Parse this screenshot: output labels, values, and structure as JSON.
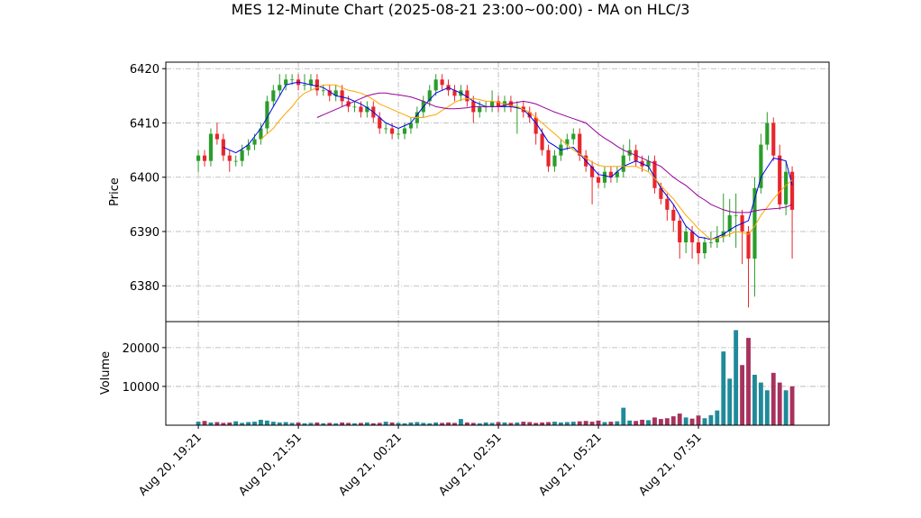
{
  "chart_data": {
    "type": "candlestick",
    "title": "MES 12-Minute Chart (2025-08-21 23:00~00:00) - MA on HLC/3",
    "ylabel": "Price",
    "up_color": "#2a9d2a",
    "down_color": "#e8262b",
    "grid": true,
    "xlim": [
      -5.2,
      100.9
    ],
    "xticks": [
      {
        "value": 0,
        "label": "Aug 20, 19:21"
      },
      {
        "value": 16,
        "label": "Aug 20, 21:51"
      },
      {
        "value": 32,
        "label": "Aug 21, 00:21"
      },
      {
        "value": 48,
        "label": "Aug 21, 02:51"
      },
      {
        "value": 64,
        "label": "Aug 21, 05:21"
      },
      {
        "value": 80,
        "label": "Aug 21, 07:51"
      }
    ],
    "ylim": [
      6373.4,
      6421.2
    ],
    "yticks": [
      6380,
      6390,
      6400,
      6410,
      6420
    ],
    "open": [
      6403,
      6404,
      6403,
      6408,
      6407,
      6404,
      6403,
      6403,
      6405,
      6406,
      6407,
      6409,
      6414,
      6416,
      6417,
      6418,
      6418,
      6417,
      6417,
      6418,
      6416,
      6416,
      6415,
      6416,
      6414,
      6413,
      6413,
      6412,
      6413,
      6411,
      6409,
      6409,
      6408,
      6408,
      6409,
      6410,
      6412,
      6414,
      6416,
      6418,
      6417,
      6416,
      6415,
      6416,
      6414,
      6412,
      6413,
      6413,
      6414,
      6413,
      6414,
      6413,
      6413,
      6412,
      6411,
      6408,
      6405,
      6402,
      6404,
      6406,
      6407,
      6408,
      6404,
      6402,
      6400,
      6399,
      6401,
      6400,
      6401,
      6404,
      6405,
      6403,
      6402,
      6403,
      6398,
      6396,
      6394,
      6392,
      6388,
      6390,
      6388,
      6386,
      6388,
      6388,
      6389,
      6390,
      6393,
      6393,
      6390,
      6385,
      6398,
      6406,
      6410,
      6404,
      6395,
      6401
    ],
    "high": [
      6405,
      6405,
      6409,
      6410,
      6408,
      6405,
      6404,
      6406,
      6407,
      6408,
      6410,
      6415,
      6417,
      6419,
      6419,
      6419,
      6419,
      6419,
      6419,
      6419,
      6417,
      6417,
      6417,
      6417,
      6415,
      6414,
      6414,
      6414,
      6414,
      6412,
      6410,
      6410,
      6409,
      6410,
      6411,
      6413,
      6415,
      6417,
      6419,
      6419,
      6418,
      6417,
      6417,
      6417,
      6415,
      6414,
      6414,
      6416,
      6415,
      6415,
      6415,
      6414,
      6414,
      6413,
      6412,
      6409,
      6406,
      6405,
      6407,
      6408,
      6409,
      6409,
      6405,
      6403,
      6401,
      6402,
      6402,
      6402,
      6406,
      6407,
      6406,
      6404,
      6404,
      6404,
      6399,
      6397,
      6395,
      6393,
      6391,
      6391,
      6389,
      6389,
      6390,
      6391,
      6397,
      6396,
      6397,
      6394,
      6391,
      6400,
      6408,
      6412,
      6411,
      6406,
      6403,
      6402
    ],
    "low": [
      6401,
      6402,
      6402,
      6406,
      6403,
      6401,
      6402,
      6402,
      6404,
      6405,
      6406,
      6408,
      6413,
      6415,
      6416,
      6417,
      6416,
      6416,
      6416,
      6415,
      6415,
      6414,
      6414,
      6413,
      6412,
      6412,
      6411,
      6411,
      6410,
      6408,
      6408,
      6407,
      6407,
      6407,
      6408,
      6409,
      6411,
      6413,
      6415,
      6416,
      6415,
      6414,
      6414,
      6413,
      6410,
      6411,
      6412,
      6412,
      6412,
      6412,
      6412,
      6408,
      6411,
      6410,
      6406,
      6404,
      6401,
      6401,
      6403,
      6405,
      6406,
      6403,
      6401,
      6395,
      6398,
      6398,
      6399,
      6399,
      6400,
      6403,
      6402,
      6401,
      6401,
      6397,
      6395,
      6392,
      6390,
      6385,
      6386,
      6385,
      6384,
      6385,
      6387,
      6387,
      6388,
      6389,
      6387,
      6384,
      6376,
      6378,
      6397,
      6405,
      6403,
      6394,
      6393,
      6385
    ],
    "close": [
      6404,
      6403,
      6408,
      6407,
      6404,
      6403,
      6403,
      6405,
      6406,
      6407,
      6409,
      6414,
      6416,
      6417,
      6418,
      6418,
      6417,
      6417,
      6418,
      6416,
      6416,
      6415,
      6416,
      6414,
      6413,
      6413,
      6412,
      6413,
      6411,
      6409,
      6409,
      6408,
      6408,
      6409,
      6410,
      6412,
      6414,
      6416,
      6418,
      6417,
      6416,
      6415,
      6416,
      6414,
      6412,
      6413,
      6413,
      6414,
      6413,
      6414,
      6413,
      6413,
      6412,
      6411,
      6408,
      6405,
      6402,
      6404,
      6406,
      6407,
      6408,
      6404,
      6402,
      6400,
      6399,
      6401,
      6400,
      6401,
      6404,
      6405,
      6403,
      6402,
      6403,
      6398,
      6396,
      6394,
      6392,
      6388,
      6390,
      6388,
      6386,
      6388,
      6388,
      6389,
      6390,
      6393,
      6393,
      6390,
      6385,
      6398,
      6406,
      6410,
      6404,
      6395,
      6401,
      6394
    ],
    "moving_averages": [
      {
        "color": "#0000ee",
        "values": [
          null,
          null,
          null,
          null,
          6405.5,
          6405,
          6404.5,
          6405.2,
          6406,
          6407.5,
          6409,
          6411,
          6413,
          6415,
          6417,
          6417.3,
          6417.5,
          6417.3,
          6417,
          6416.8,
          6416.5,
          6415.8,
          6415,
          6414.8,
          6414.5,
          6414,
          6413.5,
          6412.8,
          6412,
          6411,
          6410,
          6409.5,
          6409,
          6409.5,
          6410,
          6411.5,
          6413,
          6414.3,
          6415.5,
          6416,
          6416.5,
          6416,
          6415.5,
          6414.8,
          6414,
          6413.5,
          6413,
          6413,
          6413,
          6413,
          6413,
          6412.8,
          6412.5,
          6411.3,
          6410,
          6408.3,
          6406.5,
          6405.8,
          6405,
          6405.3,
          6405.5,
          6404.3,
          6403,
          6401.8,
          6400.5,
          6400.3,
          6400,
          6401,
          6402,
          6402.5,
          6403,
          6402.5,
          6402,
          6400,
          6398,
          6396.5,
          6395,
          6393,
          6391,
          6390,
          6389,
          6388.8,
          6388.5,
          6389,
          6389.5,
          6390.3,
          6391,
          6391.5,
          6392,
          6396,
          6400,
          6401.8,
          6403.5,
          6403.3,
          6403,
          6398.5
        ]
      },
      {
        "color": "#ffa500",
        "values": [
          null,
          null,
          null,
          null,
          null,
          null,
          null,
          null,
          null,
          null,
          6407,
          6408,
          6409,
          6410.5,
          6411.8,
          6413,
          6414.5,
          6415.5,
          6416,
          6416.5,
          6417,
          6417,
          6417,
          6416.5,
          6416,
          6415.8,
          6415.5,
          6415,
          6414.3,
          6413.5,
          6413,
          6412.5,
          6412,
          6411.5,
          6411,
          6411,
          6411,
          6411.3,
          6411.5,
          6412.3,
          6413,
          6413.8,
          6414.3,
          6414.5,
          6414.5,
          6414.3,
          6414,
          6414,
          6413.8,
          6413.5,
          6413.2,
          6413,
          6412.5,
          6412,
          6411,
          6410,
          6409,
          6408,
          6407,
          6406,
          6405,
          6404.3,
          6403.5,
          6402.8,
          6402.2,
          6402,
          6402,
          6402,
          6402,
          6402,
          6402,
          6401.5,
          6401,
          6399.8,
          6398.5,
          6397.2,
          6396,
          6394.5,
          6393,
          6391.8,
          6390.5,
          6389.5,
          6388.5,
          6388.8,
          6389,
          6389.5,
          6390,
          6389.8,
          6389.5,
          6391,
          6393,
          6394.5,
          6396,
          6397.3,
          6398.5,
          6399.5
        ]
      },
      {
        "color": "#990099",
        "values": [
          null,
          null,
          null,
          null,
          null,
          null,
          null,
          null,
          null,
          null,
          null,
          null,
          null,
          null,
          null,
          null,
          null,
          null,
          null,
          6411,
          6411.5,
          6412,
          6412.5,
          6413,
          6413.5,
          6414,
          6414.5,
          6415,
          6415.3,
          6415.5,
          6415.5,
          6415.3,
          6415.2,
          6415,
          6414.8,
          6414.4,
          6414,
          6413.5,
          6413,
          6412.8,
          6412.6,
          6412.6,
          6412.7,
          6412.8,
          6413,
          6413,
          6413,
          6413,
          6413,
          6413.3,
          6413.6,
          6413.8,
          6414,
          6413.8,
          6413.5,
          6413,
          6412.5,
          6412,
          6411.6,
          6411.2,
          6410.8,
          6410.4,
          6410,
          6409,
          6408,
          6407.2,
          6406.5,
          6405.7,
          6405,
          6404.5,
          6404,
          6403.5,
          6403,
          6402.5,
          6402,
          6401,
          6400,
          6399.2,
          6398.5,
          6397.5,
          6396.5,
          6395.8,
          6395,
          6394.5,
          6394,
          6393.7,
          6393.5,
          6393.5,
          6393.5,
          6393.8,
          6394,
          6394.1,
          6394.2,
          6394.3,
          6394.5,
          6395
        ]
      }
    ],
    "volume": {
      "ylabel": "Volume",
      "up_color": "#1f8a9a",
      "down_color": "#a8325e",
      "ylim": [
        0,
        26700
      ],
      "yticks": [
        10000,
        20000
      ],
      "values": [
        900,
        1100,
        700,
        800,
        600,
        700,
        1000,
        600,
        800,
        900,
        1400,
        1200,
        900,
        700,
        800,
        600,
        700,
        500,
        600,
        700,
        500,
        600,
        500,
        700,
        600,
        500,
        600,
        700,
        500,
        600,
        900,
        700,
        600,
        500,
        700,
        800,
        600,
        500,
        700,
        600,
        700,
        600,
        1600,
        700,
        600,
        500,
        700,
        600,
        800,
        700,
        600,
        700,
        900,
        800,
        600,
        700,
        800,
        900,
        700,
        800,
        900,
        1000,
        1100,
        900,
        1200,
        800,
        900,
        1000,
        4500,
        1200,
        1100,
        1400,
        1300,
        2000,
        1600,
        1800,
        2300,
        3000,
        2000,
        1700,
        2500,
        1800,
        2600,
        3800,
        19000,
        12000,
        24500,
        15500,
        22500,
        13000,
        11000,
        9000,
        13500,
        11000,
        9000,
        10000
      ]
    }
  }
}
